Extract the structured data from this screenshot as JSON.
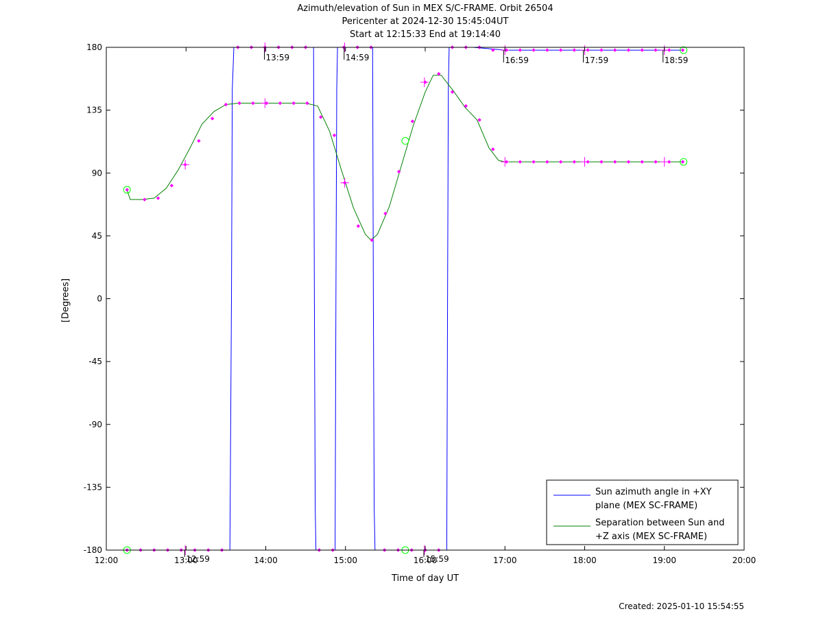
{
  "chart_data": {
    "type": "line",
    "title": "Azimuth/elevation of Sun in MEX S/C-FRAME.  Orbit 26504",
    "subtitle_1": "Pericenter at 2024-12-30 15:45:04UT",
    "subtitle_2": "Start at 12:15:33 End at 19:14:40",
    "xlabel": "Time of day UT",
    "ylabel": "[Degrees]",
    "created": "Created: 2025-01-10 15:54:55",
    "xlim_hours": [
      12,
      20
    ],
    "ylim": [
      -180,
      180
    ],
    "x_ticks": [
      {
        "value": 12,
        "label": "12:00"
      },
      {
        "value": 13,
        "label": "13:00"
      },
      {
        "value": 14,
        "label": "14:00"
      },
      {
        "value": 15,
        "label": "15:00"
      },
      {
        "value": 16,
        "label": "16:00"
      },
      {
        "value": 17,
        "label": "17:00"
      },
      {
        "value": 18,
        "label": "18:00"
      },
      {
        "value": 19,
        "label": "19:00"
      },
      {
        "value": 20,
        "label": "20:00"
      }
    ],
    "y_ticks": [
      {
        "value": 180,
        "label": "180"
      },
      {
        "value": 135,
        "label": "135"
      },
      {
        "value": 90,
        "label": "90"
      },
      {
        "value": 45,
        "label": "45"
      },
      {
        "value": 0,
        "label": "0"
      },
      {
        "value": -45,
        "label": "-45"
      },
      {
        "value": -90,
        "label": "-90"
      },
      {
        "value": -135,
        "label": "-135"
      },
      {
        "value": -180,
        "label": "-180"
      }
    ],
    "hour_annotations": [
      {
        "x": 12.983,
        "y": -180,
        "label": "12:59"
      },
      {
        "x": 13.983,
        "y": 180,
        "label": "13:59"
      },
      {
        "x": 14.983,
        "y": 180,
        "label": "14:59"
      },
      {
        "x": 15.983,
        "y": -180,
        "label": "15:59"
      },
      {
        "x": 16.983,
        "y": 178,
        "label": "16:59"
      },
      {
        "x": 17.983,
        "y": 178,
        "label": "17:59"
      },
      {
        "x": 18.983,
        "y": 178,
        "label": "18:59"
      }
    ],
    "legend_position": "bottom-right",
    "series": [
      {
        "name": "Sun azimuth angle in +XY plane (MEX SC-FRAME)",
        "legend_lines": [
          "Sun azimuth angle in +XY",
          "plane (MEX SC-FRAME)"
        ],
        "color": "#0000ff",
        "x": [
          12.26,
          13.55,
          13.57,
          13.58,
          13.6,
          14.6,
          14.61,
          14.62,
          14.63,
          14.87,
          14.88,
          14.89,
          14.9,
          15.34,
          15.35,
          15.36,
          15.37,
          16.27,
          16.28,
          16.29,
          16.3,
          16.6,
          16.8,
          17.0,
          17.5,
          18.0,
          18.5,
          19.24
        ],
        "y": [
          -180,
          -180,
          0,
          150,
          180,
          180,
          0,
          -150,
          -180,
          -180,
          0,
          150,
          180,
          180,
          0,
          -150,
          -180,
          -180,
          0,
          150,
          180,
          180,
          179,
          178,
          178,
          178,
          178,
          178
        ]
      },
      {
        "name": "Separation between Sun and +Z axis (MEX SC-FRAME)",
        "legend_lines": [
          "Separation between Sun and",
          "+Z axis (MEX SC-FRAME)"
        ],
        "color": "#008000",
        "x": [
          12.26,
          12.3,
          12.45,
          12.6,
          12.75,
          12.9,
          13.05,
          13.2,
          13.35,
          13.5,
          13.65,
          14.0,
          14.5,
          14.65,
          14.8,
          14.95,
          15.1,
          15.25,
          15.32,
          15.4,
          15.55,
          15.7,
          15.85,
          16.0,
          16.1,
          16.2,
          16.35,
          16.5,
          16.65,
          16.8,
          16.92,
          17.0,
          17.5,
          18.0,
          18.5,
          19.0,
          19.24
        ],
        "y": [
          78,
          71,
          71,
          72,
          79,
          92,
          108,
          125,
          134,
          139,
          140,
          140,
          140,
          138,
          120,
          92,
          65,
          46,
          42,
          46,
          66,
          95,
          124,
          148,
          160,
          160,
          149,
          137,
          128,
          108,
          99,
          98,
          98,
          98,
          98,
          98,
          98
        ]
      }
    ],
    "sample_markers": [
      {
        "x": 12.26,
        "y": -180
      },
      {
        "x": 12.43,
        "y": -180
      },
      {
        "x": 12.6,
        "y": -180
      },
      {
        "x": 12.77,
        "y": -180
      },
      {
        "x": 12.94,
        "y": -180
      },
      {
        "x": 13.11,
        "y": -180
      },
      {
        "x": 13.28,
        "y": -180
      },
      {
        "x": 13.45,
        "y": -180
      },
      {
        "x": 13.65,
        "y": 180
      },
      {
        "x": 13.82,
        "y": 180
      },
      {
        "x": 13.99,
        "y": 180
      },
      {
        "x": 14.16,
        "y": 180
      },
      {
        "x": 14.33,
        "y": 180
      },
      {
        "x": 14.5,
        "y": 180
      },
      {
        "x": 14.67,
        "y": -180
      },
      {
        "x": 14.84,
        "y": -180
      },
      {
        "x": 14.98,
        "y": 180
      },
      {
        "x": 15.15,
        "y": 180
      },
      {
        "x": 15.32,
        "y": 180
      },
      {
        "x": 15.49,
        "y": -180
      },
      {
        "x": 15.66,
        "y": -180
      },
      {
        "x": 15.83,
        "y": -180
      },
      {
        "x": 16.0,
        "y": -180
      },
      {
        "x": 16.17,
        "y": -180
      },
      {
        "x": 16.34,
        "y": 180
      },
      {
        "x": 16.51,
        "y": 180
      },
      {
        "x": 16.68,
        "y": 180
      },
      {
        "x": 16.85,
        "y": 178
      },
      {
        "x": 17.02,
        "y": 178
      },
      {
        "x": 17.19,
        "y": 178
      },
      {
        "x": 17.36,
        "y": 178
      },
      {
        "x": 17.53,
        "y": 178
      },
      {
        "x": 17.7,
        "y": 178
      },
      {
        "x": 17.87,
        "y": 178
      },
      {
        "x": 18.04,
        "y": 178
      },
      {
        "x": 18.21,
        "y": 178
      },
      {
        "x": 18.38,
        "y": 178
      },
      {
        "x": 18.55,
        "y": 178
      },
      {
        "x": 18.72,
        "y": 178
      },
      {
        "x": 18.89,
        "y": 178
      },
      {
        "x": 19.06,
        "y": 178
      },
      {
        "x": 19.23,
        "y": 178
      },
      {
        "x": 12.26,
        "y": 78
      },
      {
        "x": 12.48,
        "y": 71
      },
      {
        "x": 12.65,
        "y": 72
      },
      {
        "x": 12.82,
        "y": 81
      },
      {
        "x": 12.99,
        "y": 96
      },
      {
        "x": 13.16,
        "y": 113
      },
      {
        "x": 13.33,
        "y": 129
      },
      {
        "x": 13.5,
        "y": 139
      },
      {
        "x": 13.67,
        "y": 140
      },
      {
        "x": 13.84,
        "y": 140
      },
      {
        "x": 14.01,
        "y": 140
      },
      {
        "x": 14.18,
        "y": 140
      },
      {
        "x": 14.35,
        "y": 140
      },
      {
        "x": 14.52,
        "y": 140
      },
      {
        "x": 14.69,
        "y": 130
      },
      {
        "x": 14.86,
        "y": 117
      },
      {
        "x": 14.99,
        "y": 83
      },
      {
        "x": 15.16,
        "y": 52
      },
      {
        "x": 15.33,
        "y": 42
      },
      {
        "x": 15.5,
        "y": 61
      },
      {
        "x": 15.67,
        "y": 91
      },
      {
        "x": 15.84,
        "y": 127
      },
      {
        "x": 16.0,
        "y": 155
      },
      {
        "x": 16.17,
        "y": 161
      },
      {
        "x": 16.34,
        "y": 148
      },
      {
        "x": 16.51,
        "y": 138
      },
      {
        "x": 16.68,
        "y": 128
      },
      {
        "x": 16.85,
        "y": 107
      },
      {
        "x": 17.02,
        "y": 98
      },
      {
        "x": 17.19,
        "y": 98
      },
      {
        "x": 17.36,
        "y": 98
      },
      {
        "x": 17.53,
        "y": 98
      },
      {
        "x": 17.7,
        "y": 98
      },
      {
        "x": 17.87,
        "y": 98
      },
      {
        "x": 18.04,
        "y": 98
      },
      {
        "x": 18.21,
        "y": 98
      },
      {
        "x": 18.38,
        "y": 98
      },
      {
        "x": 18.55,
        "y": 98
      },
      {
        "x": 18.72,
        "y": 98
      },
      {
        "x": 18.89,
        "y": 98
      },
      {
        "x": 19.06,
        "y": 98
      },
      {
        "x": 19.23,
        "y": 98
      }
    ],
    "cross_markers": [
      {
        "x": 12.99,
        "y": 96
      },
      {
        "x": 13.99,
        "y": 140
      },
      {
        "x": 14.99,
        "y": 83
      },
      {
        "x": 15.99,
        "y": 155
      },
      {
        "x": 17.0,
        "y": 98
      },
      {
        "x": 18.0,
        "y": 98
      },
      {
        "x": 19.0,
        "y": 98
      },
      {
        "x": 12.99,
        "y": -180
      },
      {
        "x": 13.99,
        "y": 180
      },
      {
        "x": 14.99,
        "y": 180
      },
      {
        "x": 15.99,
        "y": -180
      },
      {
        "x": 17.0,
        "y": 178
      },
      {
        "x": 18.0,
        "y": 178
      },
      {
        "x": 19.0,
        "y": 178
      }
    ],
    "endpoint_circles": [
      {
        "x": 12.26,
        "y": 78
      },
      {
        "x": 12.26,
        "y": -180
      },
      {
        "x": 15.75,
        "y": 113
      },
      {
        "x": 15.75,
        "y": -180
      },
      {
        "x": 19.24,
        "y": 98
      },
      {
        "x": 19.24,
        "y": 178
      }
    ],
    "marker_color": "#ff00ff",
    "circle_color": "#00ff00"
  }
}
